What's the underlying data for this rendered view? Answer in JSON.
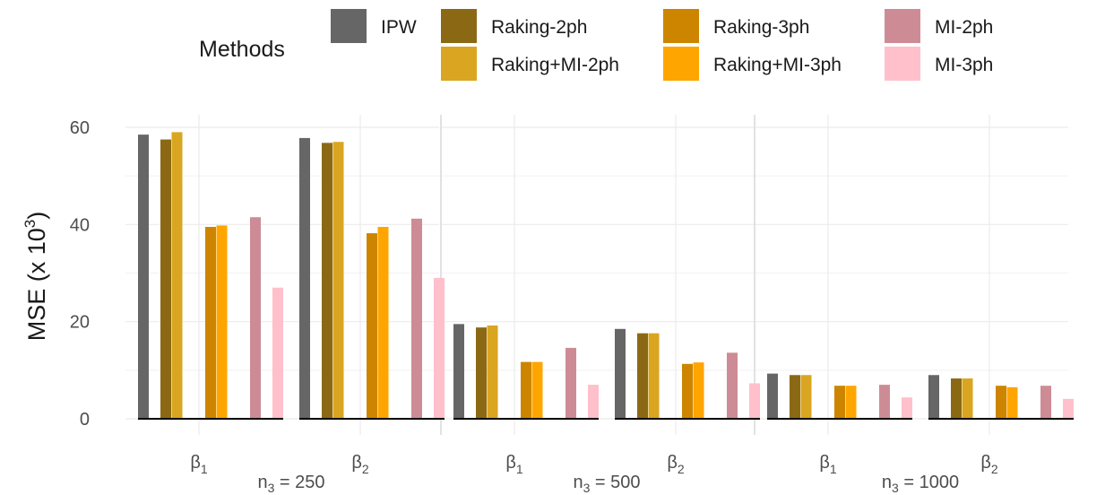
{
  "chart_data": {
    "type": "bar",
    "ylabel": "MSE (x 10",
    "ylabel_exp": "3",
    "ylabel_close": ")",
    "ylim": [
      0,
      62
    ],
    "yticks": [
      0,
      20,
      40,
      60
    ],
    "legend": {
      "title": "Methods",
      "placement": "top",
      "rows": 2
    },
    "series": [
      {
        "name": "IPW",
        "color": "#666666"
      },
      {
        "name": "Raking-2ph",
        "color": "#8B6914"
      },
      {
        "name": "Raking+MI-2ph",
        "color": "#DAA520"
      },
      {
        "name": "Raking-3ph",
        "color": "#CD8500"
      },
      {
        "name": "Raking+MI-3ph",
        "color": "#FFA500"
      },
      {
        "name": "MI-2ph",
        "color": "#CD8C95"
      },
      {
        "name": "MI-3ph",
        "color": "#FFC0CB"
      }
    ],
    "panels": [
      {
        "label_base": "n",
        "label_sub": "3",
        "label_rest": " = 250",
        "groups": [
          {
            "base": "β",
            "sub": "1",
            "values": [
              58.5,
              57.5,
              59.0,
              39.5,
              39.8,
              41.5,
              27.0
            ]
          },
          {
            "base": "β",
            "sub": "2",
            "values": [
              57.8,
              56.8,
              57.0,
              38.2,
              39.5,
              41.2,
              29.0
            ]
          }
        ]
      },
      {
        "label_base": "n",
        "label_sub": "3",
        "label_rest": " = 500",
        "groups": [
          {
            "base": "β",
            "sub": "1",
            "values": [
              19.5,
              18.8,
              19.2,
              11.7,
              11.7,
              14.6,
              7.0
            ]
          },
          {
            "base": "β",
            "sub": "2",
            "values": [
              18.5,
              17.6,
              17.6,
              11.3,
              11.6,
              13.6,
              7.3
            ]
          }
        ]
      },
      {
        "label_base": "n",
        "label_sub": "3",
        "label_rest": " = 1000",
        "groups": [
          {
            "base": "β",
            "sub": "1",
            "values": [
              9.3,
              9.0,
              9.0,
              6.8,
              6.8,
              7.0,
              4.4
            ]
          },
          {
            "base": "β",
            "sub": "2",
            "values": [
              9.0,
              8.3,
              8.3,
              6.8,
              6.5,
              6.8,
              4.1
            ]
          }
        ]
      }
    ]
  }
}
